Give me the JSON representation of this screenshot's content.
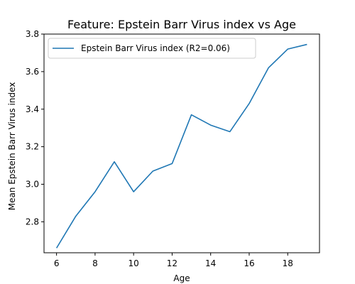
{
  "chart_data": {
    "type": "line",
    "title": "Feature: Epstein Barr Virus index vs Age",
    "xlabel": "Age",
    "ylabel": "Mean Epstein Barr Virus index",
    "xlim": [
      5.35,
      19.65
    ],
    "ylim": [
      2.635,
      3.8
    ],
    "x_ticks": [
      6,
      8,
      10,
      12,
      14,
      16,
      18
    ],
    "y_ticks": [
      2.8,
      3.0,
      3.2,
      3.4,
      3.6,
      3.8
    ],
    "x_tick_labels": [
      "6",
      "8",
      "10",
      "12",
      "14",
      "16",
      "18"
    ],
    "y_tick_labels": [
      "2.8",
      "3.0",
      "3.2",
      "3.4",
      "3.6",
      "3.8"
    ],
    "grid": false,
    "legend_position": "upper-left",
    "series": [
      {
        "name": "Epstein Barr Virus index (R2=0.06)",
        "color": "#1f77b4",
        "x": [
          6,
          7,
          8,
          9,
          10,
          11,
          12,
          13,
          14,
          15,
          16,
          17,
          18,
          19
        ],
        "y": [
          2.66,
          2.83,
          2.96,
          3.12,
          2.96,
          3.07,
          3.11,
          3.37,
          3.315,
          3.28,
          3.43,
          3.62,
          3.72,
          3.745
        ]
      }
    ]
  }
}
